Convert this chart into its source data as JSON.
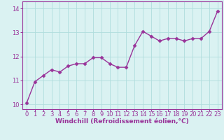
{
  "x": [
    0,
    1,
    2,
    3,
    4,
    5,
    6,
    7,
    8,
    9,
    10,
    11,
    12,
    13,
    14,
    15,
    16,
    17,
    18,
    19,
    20,
    21,
    22,
    23
  ],
  "y": [
    10.05,
    10.95,
    11.2,
    11.45,
    11.35,
    11.6,
    11.7,
    11.7,
    11.95,
    11.95,
    11.7,
    11.55,
    11.55,
    12.45,
    13.05,
    12.85,
    12.65,
    12.75,
    12.75,
    12.65,
    12.75,
    12.75,
    13.05,
    13.9
  ],
  "line_color": "#993399",
  "marker": "D",
  "markersize": 2.5,
  "linewidth": 1.0,
  "bg_color": "#daf2f2",
  "grid_color": "#b0dddd",
  "axis_color": "#993399",
  "xlabel": "Windchill (Refroidissement éolien,°C)",
  "xlabel_fontsize": 6.5,
  "tick_fontsize": 6.0,
  "ylim": [
    9.8,
    14.3
  ],
  "xlim": [
    -0.5,
    23.5
  ],
  "yticks": [
    10,
    11,
    12,
    13,
    14
  ],
  "xticks": [
    0,
    1,
    2,
    3,
    4,
    5,
    6,
    7,
    8,
    9,
    10,
    11,
    12,
    13,
    14,
    15,
    16,
    17,
    18,
    19,
    20,
    21,
    22,
    23
  ]
}
